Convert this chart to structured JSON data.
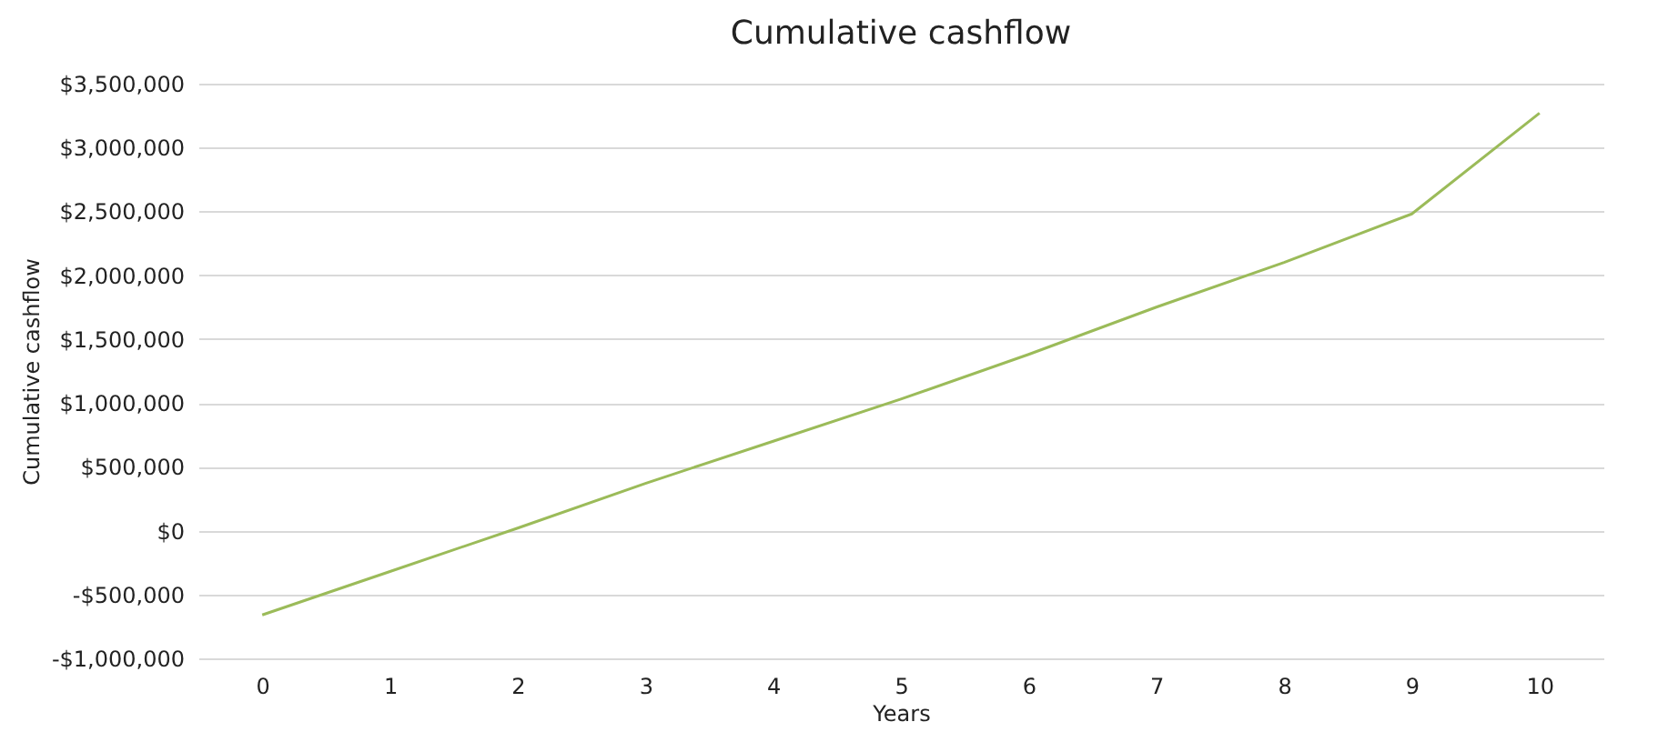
{
  "chart_data": {
    "type": "line",
    "title": "Cumulative cashflow",
    "xlabel": "Years",
    "ylabel": "Cumulative cashflow",
    "categories": [
      "0",
      "1",
      "2",
      "3",
      "4",
      "5",
      "6",
      "7",
      "8",
      "9",
      "10"
    ],
    "series": [
      {
        "color": "#9bbb59",
        "values": [
          -660000,
          -320000,
          20000,
          370000,
          700000,
          1030000,
          1380000,
          1750000,
          2100000,
          2480000,
          3270000
        ]
      }
    ],
    "ylim": [
      -1000000,
      3500000
    ],
    "yticks": [
      {
        "value": -1000000,
        "label": "-$1,000,000"
      },
      {
        "value": -500000,
        "label": "-$500,000"
      },
      {
        "value": 0,
        "label": "$0"
      },
      {
        "value": 500000,
        "label": "$500,000"
      },
      {
        "value": 1000000,
        "label": "$1,000,000"
      },
      {
        "value": 1500000,
        "label": "$1,500,000"
      },
      {
        "value": 2000000,
        "label": "$2,000,000"
      },
      {
        "value": 2500000,
        "label": "$2,500,000"
      },
      {
        "value": 3000000,
        "label": "$3,000,000"
      },
      {
        "value": 3500000,
        "label": "$3,500,000"
      }
    ],
    "grid": "y",
    "marker": "none",
    "line_style": "solid"
  }
}
